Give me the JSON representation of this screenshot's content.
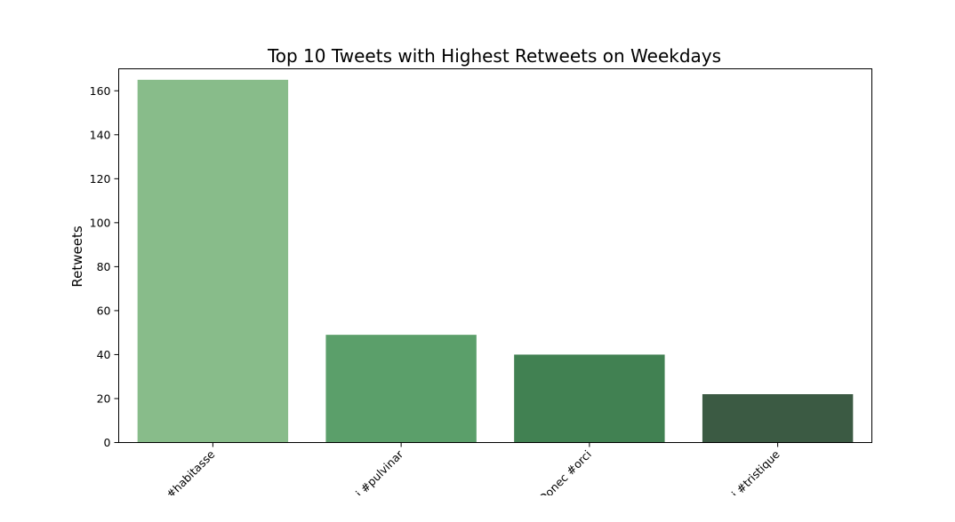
{
  "chart_data": {
    "type": "bar",
    "title": "Top 10 Tweets with Highest Retweets on Weekdays",
    "xlabel": "",
    "ylabel": "Retweets",
    "categories": [
      "#habitasse",
      "#pulvinar",
      "#orci",
      "#tristique"
    ],
    "x_tick_labels_visible": [
      "#habitasse",
      "i #pulvinar",
      "Donec #orci",
      "i #tristique"
    ],
    "values": [
      165,
      49,
      40,
      22
    ],
    "bar_colors": [
      "#88bc8a",
      "#5b9f6a",
      "#418152",
      "#3b5a43"
    ],
    "ylim": [
      0,
      170
    ],
    "yticks": [
      0,
      20,
      40,
      60,
      80,
      100,
      120,
      140,
      160
    ],
    "grid": false,
    "legend": "none"
  }
}
